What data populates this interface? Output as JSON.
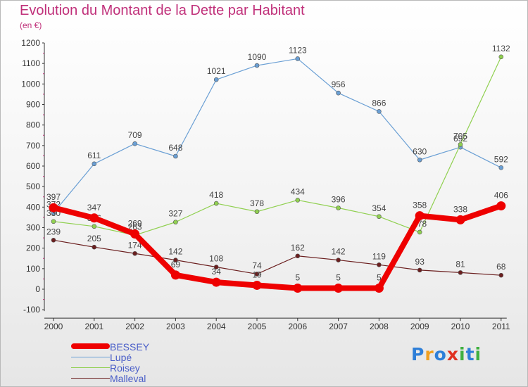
{
  "title": "Evolution du Montant de la Dette par Habitant",
  "subtitle": "(en €)",
  "logo": {
    "letters": [
      "P",
      "r",
      "o",
      "x",
      "i",
      "t",
      "i"
    ],
    "colors": [
      "#2e7fd8",
      "#f0a020",
      "#2e7fd8",
      "#e03020",
      "#40b040",
      "#2e7fd8",
      "#40b040"
    ]
  },
  "chart_data": {
    "type": "line",
    "title": "Evolution du Montant de la Dette par Habitant",
    "ylabel": "(en €)",
    "xlabel": "",
    "categories": [
      "2000",
      "2001",
      "2002",
      "2003",
      "2004",
      "2005",
      "2006",
      "2007",
      "2008",
      "2009",
      "2010",
      "2011"
    ],
    "ylim": [
      -100,
      1200
    ],
    "yticks": [
      "-100",
      "0",
      "100",
      "200",
      "300",
      "400",
      "500",
      "600",
      "700",
      "800",
      "900",
      "1000",
      "1100",
      "1200"
    ],
    "grid": false,
    "legend_position": "bottom-left",
    "series": [
      {
        "name": "BESSEY",
        "color": "#ee0000",
        "values": [
          397,
          347,
          269,
          69,
          34,
          19,
          5,
          5,
          5,
          358,
          338,
          406
        ]
      },
      {
        "name": "Lupé",
        "color": "#6a9fd4",
        "values": [
          372,
          611,
          709,
          648,
          1021,
          1090,
          1123,
          956,
          866,
          630,
          692,
          592
        ]
      },
      {
        "name": "Roisey",
        "color": "#90d050",
        "values": [
          330,
          306,
          263,
          327,
          418,
          378,
          434,
          396,
          354,
          278,
          705,
          1132
        ]
      },
      {
        "name": "Malleval",
        "color": "#6b1f1f",
        "values": [
          239,
          205,
          174,
          142,
          108,
          74,
          162,
          142,
          119,
          93,
          81,
          68
        ]
      }
    ]
  }
}
